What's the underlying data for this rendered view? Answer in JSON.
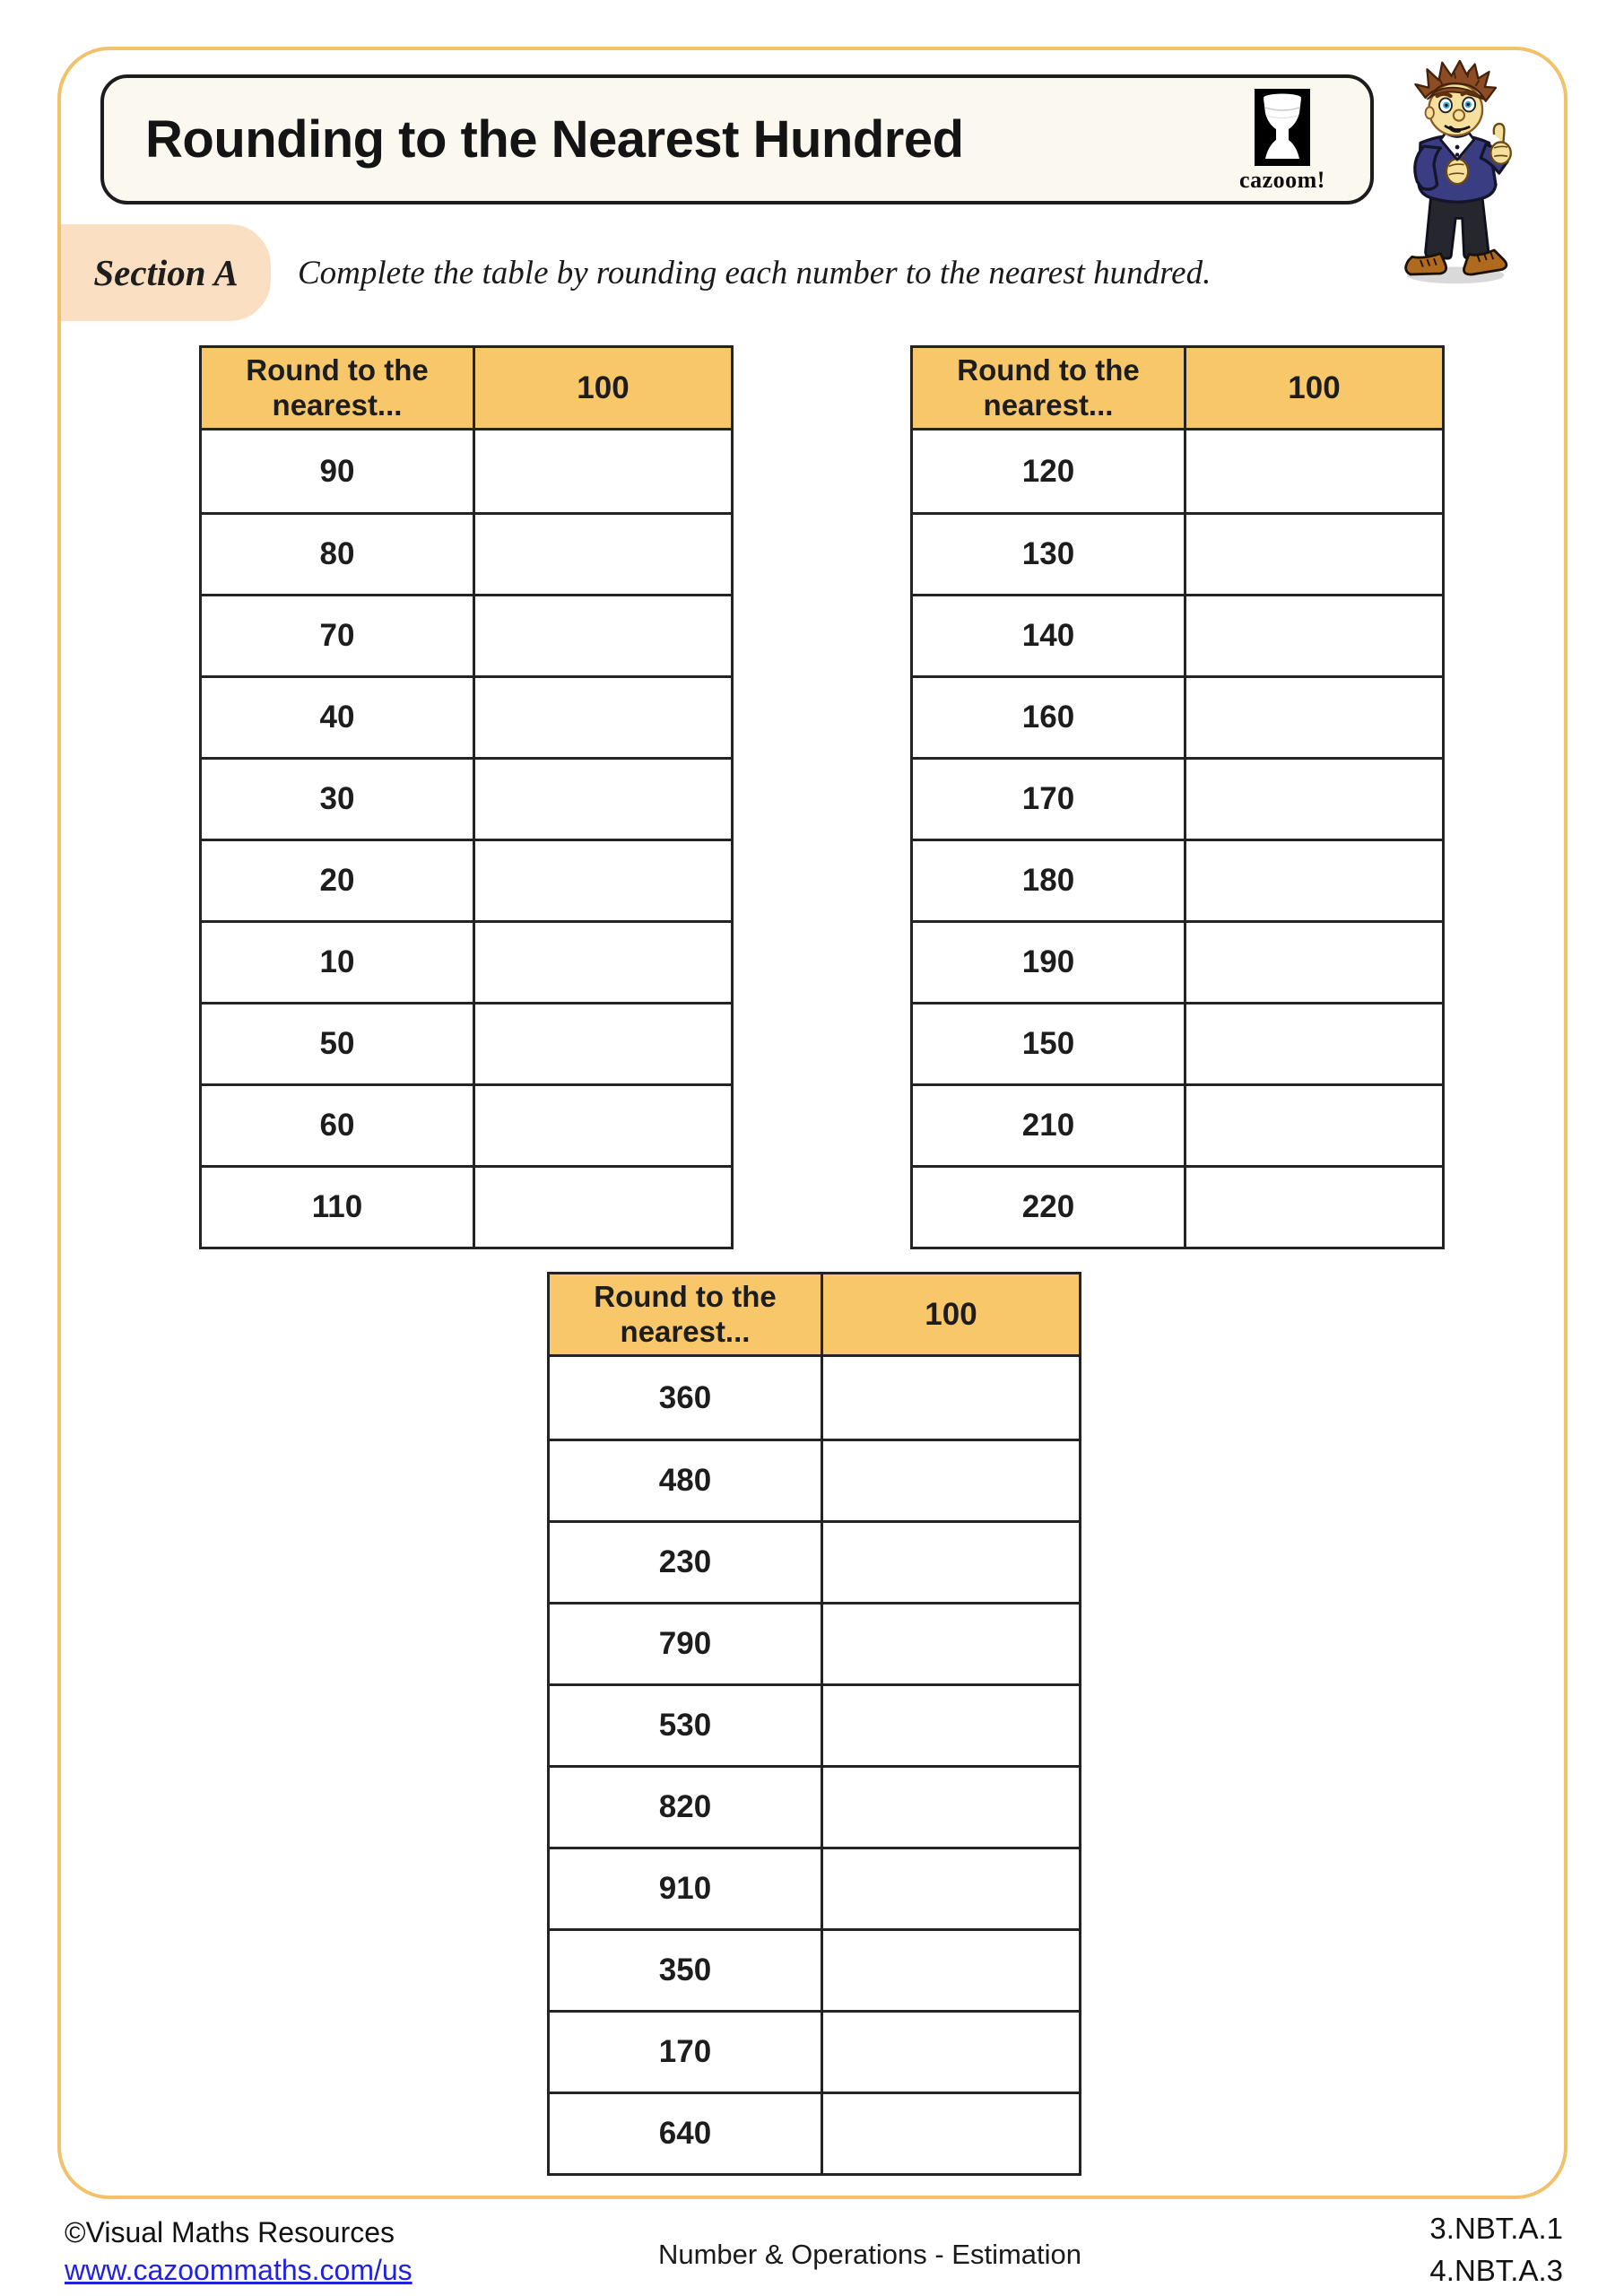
{
  "header": {
    "title": "Rounding to the Nearest Hundred",
    "brand": "cazoom!"
  },
  "icons": {
    "logo": "djembe-drum-icon",
    "mascot": "student-boy-illustration"
  },
  "section": {
    "label": "Section A",
    "instruction": "Complete the table by rounding each number to the nearest hundred."
  },
  "tables": [
    {
      "header_col1": "Round to the nearest...",
      "header_col2": "100",
      "rows": [
        "90",
        "80",
        "70",
        "40",
        "30",
        "20",
        "10",
        "50",
        "60",
        "110"
      ]
    },
    {
      "header_col1": "Round to the nearest...",
      "header_col2": "100",
      "rows": [
        "120",
        "130",
        "140",
        "160",
        "170",
        "180",
        "190",
        "150",
        "210",
        "220"
      ]
    },
    {
      "header_col1": "Round to the nearest...",
      "header_col2": "100",
      "rows": [
        "360",
        "480",
        "230",
        "790",
        "530",
        "820",
        "910",
        "350",
        "170",
        "640"
      ]
    }
  ],
  "footer": {
    "copyright": "©Visual Maths Resources",
    "link": "www.cazoommaths.com/us",
    "center": "Number & Operations - Estimation",
    "standards": [
      "3.NBT.A.1",
      "4.NBT.A.3"
    ]
  },
  "colors": {
    "page_border": "#F1C26B",
    "table_header": "#F7C76A",
    "section_badge": "#FBDFC3",
    "title_box_bg": "#FAF8EF",
    "link_blue": "#2222DD",
    "ink": "#231F20"
  }
}
